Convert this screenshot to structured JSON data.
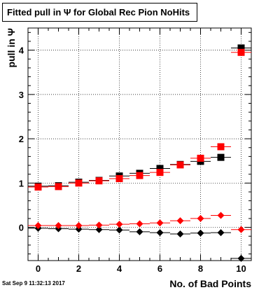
{
  "title": "Fitted pull in Ψ  for Global Rec Pion NoHits",
  "timestamp": "Sat Sep  9 11:32:13 2017",
  "chart_data": {
    "type": "scatter",
    "title": "Fitted pull in Ψ  for Global Rec Pion NoHits",
    "xlabel": "No. of Bad Points",
    "ylabel": "pull in Ψ",
    "xlim": [
      -0.5,
      10.5
    ],
    "ylim": [
      -0.75,
      4.5
    ],
    "grid": true,
    "x_ticks": [
      0,
      2,
      4,
      6,
      8,
      10
    ],
    "y_ticks": [
      0,
      1,
      2,
      3,
      4
    ],
    "series": [
      {
        "marker": "square",
        "color": "#000000",
        "x": [
          0,
          1,
          2,
          3,
          4,
          5,
          6,
          7,
          8,
          9,
          10
        ],
        "values": [
          0.93,
          0.94,
          1.02,
          1.06,
          1.16,
          1.22,
          1.33,
          1.42,
          1.49,
          1.58,
          4.05
        ]
      },
      {
        "marker": "square",
        "color": "#ff0000",
        "x": [
          0,
          1,
          2,
          3,
          4,
          5,
          6,
          7,
          8,
          9,
          10
        ],
        "values": [
          0.91,
          0.92,
          1.0,
          1.05,
          1.1,
          1.17,
          1.24,
          1.41,
          1.56,
          1.82,
          3.95
        ]
      },
      {
        "marker": "diamond",
        "color": "#000000",
        "x": [
          0,
          1,
          2,
          3,
          4,
          5,
          6,
          7,
          8,
          9,
          10
        ],
        "values": [
          -0.02,
          -0.03,
          -0.04,
          -0.05,
          -0.06,
          -0.1,
          -0.12,
          -0.15,
          -0.13,
          -0.12,
          -0.7
        ]
      },
      {
        "marker": "diamond",
        "color": "#ff0000",
        "x": [
          0,
          1,
          2,
          3,
          4,
          5,
          6,
          7,
          8,
          9,
          10
        ],
        "values": [
          0.04,
          0.04,
          0.04,
          0.05,
          0.07,
          0.08,
          0.1,
          0.15,
          0.2,
          0.27,
          -0.05
        ]
      }
    ]
  }
}
